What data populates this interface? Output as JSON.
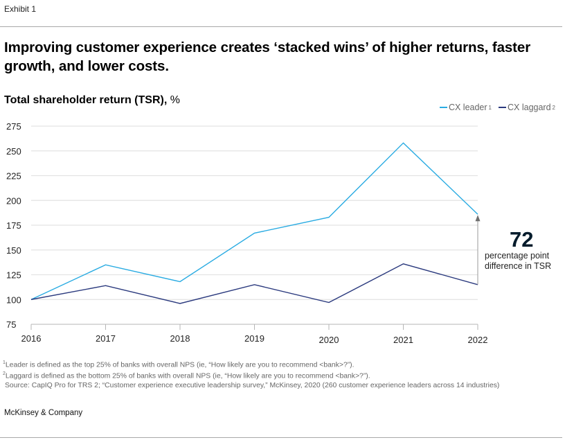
{
  "header": {
    "exhibit": "Exhibit 1",
    "title": "Improving customer experience creates ‘stacked wins’ of higher returns, faster growth, and lower costs."
  },
  "chart_data": {
    "type": "line",
    "title": "Total shareholder return (TSR),",
    "title_unit": "%",
    "xlabel": "",
    "ylabel": "",
    "x": [
      "2016",
      "2017",
      "2018",
      "2019",
      "2020",
      "2021",
      "2022"
    ],
    "series": [
      {
        "name": "CX leader",
        "footnote": "1",
        "color": "#29abe2",
        "values": [
          100,
          135,
          118,
          167,
          183,
          258,
          186
        ]
      },
      {
        "name": "CX laggard",
        "footnote": "2",
        "color": "#2b3a7e",
        "values": [
          100,
          114,
          96,
          115,
          97,
          136,
          115
        ]
      }
    ],
    "yticks": [
      75,
      100,
      125,
      150,
      175,
      200,
      225,
      250,
      275
    ],
    "ylim": [
      75,
      275
    ],
    "grid": true,
    "legend_position": "top-right",
    "annotation": {
      "value": "72",
      "text_line1": "percentage point",
      "text_line2": "difference in TSR",
      "at_x": "2022"
    }
  },
  "footnotes": {
    "note1_mark": "1",
    "note1": "Leader is defined as the top 25% of banks with overall NPS (ie, “How likely are you to recommend <bank>?”).",
    "note2_mark": "2",
    "note2": "Laggard is defined as the bottom 25% of banks with overall NPS (ie, “How likely are you to recommend <bank>?”).",
    "source": "Source: CapIQ Pro for TRS 2; “Customer experience executive leadership survey,” McKinsey, 2020 (260 customer experience leaders across 14 industries)"
  },
  "footer": {
    "brand": "McKinsey & Company"
  },
  "colors": {
    "grid": "#e3e3e3",
    "axis": "#b5b5b5",
    "arrow": "#6e6e6e"
  }
}
